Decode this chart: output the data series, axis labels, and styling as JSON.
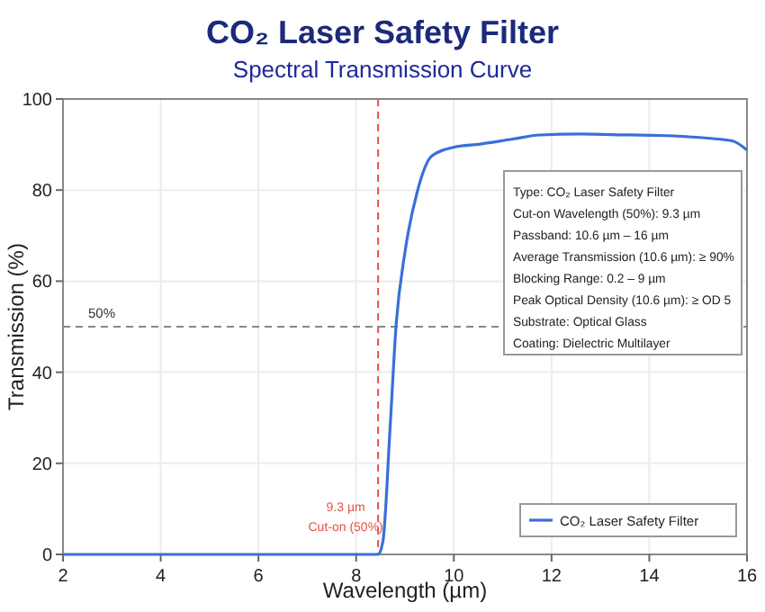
{
  "chart_data": {
    "type": "line",
    "title": "CO₂ Laser Safety Filter",
    "subtitle": "Spectral Transmission Curve",
    "xlabel": "Wavelength (µm)",
    "ylabel": "Transmission (%)",
    "xlim": [
      2,
      16
    ],
    "xticks": [
      2,
      4,
      6,
      8,
      10,
      12,
      14,
      16
    ],
    "ylim": [
      0,
      100
    ],
    "yticks": [
      0,
      20,
      40,
      60,
      80,
      100
    ],
    "grid": true,
    "legend": "bottom right",
    "line_style": "solid",
    "marker": "none",
    "series": [
      {
        "name": "CO₂ Laser Safety Filter",
        "color": "#3a6fd8",
        "x": [
          2,
          4,
          6,
          8,
          8.45,
          8.55,
          8.69,
          8.82,
          9.0,
          9.25,
          9.55,
          10.04,
          10.54,
          11.2,
          11.76,
          12.6,
          13.6,
          14.2,
          14.8,
          15.3,
          15.7,
          16
        ],
        "values": [
          0,
          0,
          0,
          0,
          0,
          3,
          26.9,
          50.6,
          66.4,
          79.6,
          87.5,
          89.5,
          90.1,
          91.2,
          92.1,
          92.3,
          92.1,
          92,
          91.7,
          91.3,
          90.8,
          88.8
        ]
      }
    ],
    "ref_lines": [
      {
        "axis": "x",
        "value": 8.45,
        "label": "9.3 µm\nCut-on (50%)",
        "color": "#e8504a",
        "line_style": "dashed"
      },
      {
        "axis": "y",
        "value": 50,
        "label": "50%",
        "color": "#888888",
        "line_style": "dashed"
      }
    ],
    "annotations": [
      "Type: CO₂ Laser Safety Filter",
      "Cut-on Wavelength (50%): 9.3 µm",
      "Passband: 10.6 µm – 16 µm",
      "Average Transmission (10.6 µm): ≥ 90%",
      "Blocking Range: 0.2 – 9 µm",
      "Peak Optical Density (10.6 µm): ≥ OD 5",
      "Substrate: Optical Glass",
      "Coating: Dielectric Multilayer"
    ]
  }
}
